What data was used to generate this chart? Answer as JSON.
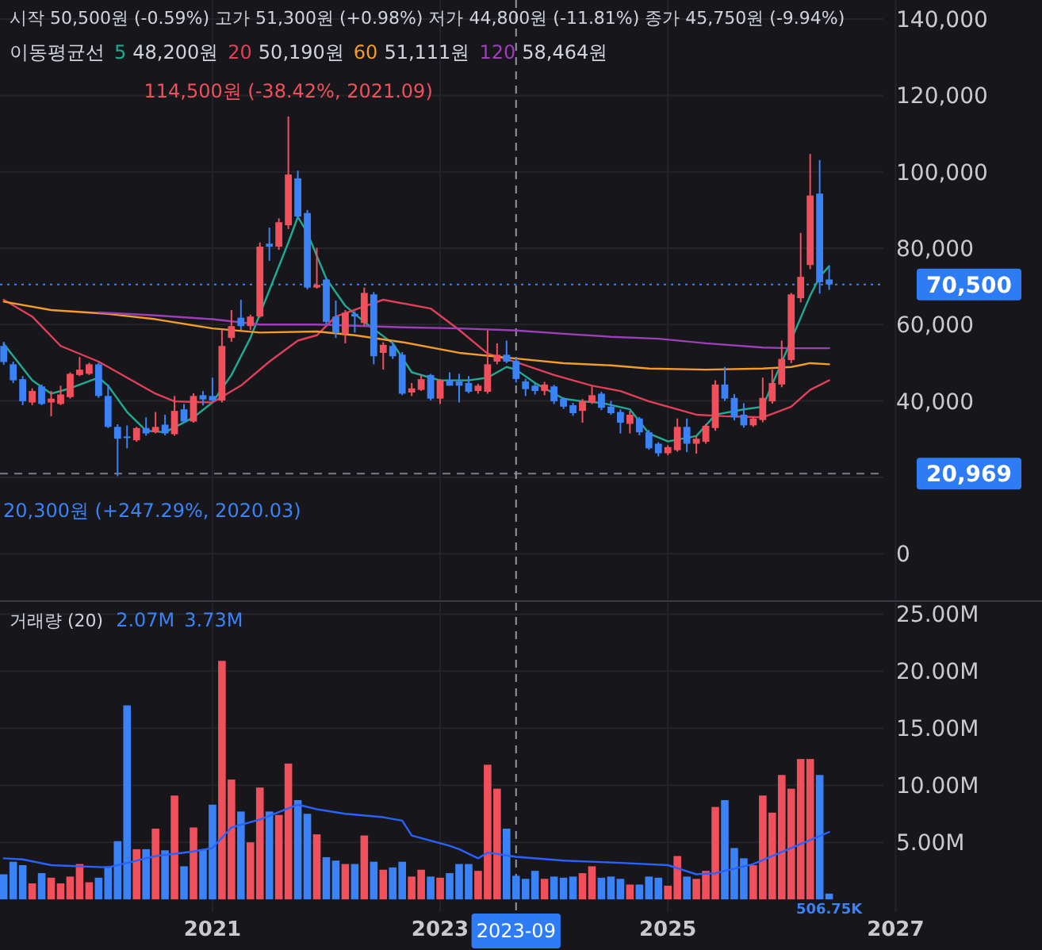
{
  "chart_data": [
    {
      "type": "candlestick",
      "title": "시작 50,500원 (-0.59%) 고가 51,300원 (+0.98%) 저가 44,800원 (-11.81%) 종가 45,750원 (-9.94%)",
      "legend_title": "이동평균선",
      "legend": "top left",
      "grid": true,
      "tick_labels": "y",
      "xlim": [
        "2019-02-18",
        "2028-04-14"
      ],
      "ylim": [
        -12000,
        145000
      ],
      "yticks": [
        0,
        {
          "value": 20000,
          "label": null
        },
        {
          "value": 40000,
          "label": "40,000"
        },
        {
          "value": 60000,
          "label": "60,000"
        },
        {
          "value": 80000,
          "label": "80,000"
        },
        {
          "value": 100000,
          "label": "100,000"
        },
        {
          "value": 120000,
          "label": "120,000"
        },
        {
          "value": 140000,
          "label": "140,000"
        }
      ],
      "xticks": [
        {
          "value": "2021-01-01",
          "label": null
        },
        {
          "value": "2023-01-01",
          "label": null
        },
        {
          "value": "2025-01-01",
          "label": null
        },
        {
          "value": "2027-01-01",
          "label": null
        }
      ],
      "x": [
        "2019-03",
        "2019-04",
        "2019-05",
        "2019-06",
        "2019-07",
        "2019-08",
        "2019-09",
        "2019-10",
        "2019-11",
        "2019-12",
        "2020-01",
        "2020-02",
        "2020-03",
        "2020-04",
        "2020-05",
        "2020-06",
        "2020-07",
        "2020-08",
        "2020-09",
        "2020-10",
        "2020-11",
        "2020-12",
        "2021-01",
        "2021-02",
        "2021-03",
        "2021-04",
        "2021-05",
        "2021-06",
        "2021-07",
        "2021-08",
        "2021-09",
        "2021-10",
        "2021-11",
        "2021-12",
        "2022-01",
        "2022-02",
        "2022-03",
        "2022-04",
        "2022-05",
        "2022-06",
        "2022-07",
        "2022-08",
        "2022-09",
        "2022-10",
        "2022-11",
        "2022-12",
        "2023-01",
        "2023-02",
        "2023-03",
        "2023-04",
        "2023-05",
        "2023-06",
        "2023-07",
        "2023-08",
        "2023-09",
        "2023-10",
        "2023-11",
        "2023-12",
        "2024-01",
        "2024-02",
        "2024-03",
        "2024-04",
        "2024-05",
        "2024-06",
        "2024-07",
        "2024-08",
        "2024-09",
        "2024-10",
        "2024-11",
        "2024-12",
        "2025-01",
        "2025-02",
        "2025-03",
        "2025-04",
        "2025-05",
        "2025-06",
        "2025-07",
        "2025-08",
        "2025-09",
        "2025-10",
        "2025-11",
        "2025-12",
        "2026-01",
        "2026-02",
        "2026-03",
        "2026-04",
        "2026-05",
        "2026-06"
      ],
      "ohlc": [
        [
          54400,
          55500,
          49500,
          50200
        ],
        [
          49600,
          50300,
          44700,
          45400
        ],
        [
          45700,
          46500,
          38900,
          39900
        ],
        [
          39600,
          43300,
          38900,
          42600
        ],
        [
          43800,
          44300,
          38900,
          39200
        ],
        [
          39600,
          42600,
          36000,
          40600
        ],
        [
          39200,
          44000,
          38900,
          41700
        ],
        [
          41000,
          47500,
          40600,
          47100
        ],
        [
          46800,
          51500,
          46500,
          48200
        ],
        [
          47100,
          50000,
          46800,
          49600
        ],
        [
          49600,
          50000,
          40800,
          41300
        ],
        [
          41300,
          44300,
          32900,
          33200
        ],
        [
          33200,
          33900,
          20300,
          30100
        ],
        [
          30700,
          33600,
          27600,
          30400
        ],
        [
          29700,
          33200,
          29300,
          32900
        ],
        [
          32900,
          35700,
          30900,
          31500
        ],
        [
          31800,
          37100,
          31500,
          33200
        ],
        [
          33800,
          36400,
          31000,
          31500
        ],
        [
          31300,
          41300,
          30900,
          37400
        ],
        [
          37800,
          39200,
          34300,
          34600
        ],
        [
          34600,
          42000,
          34300,
          41300
        ],
        [
          41500,
          42600,
          38800,
          40400
        ],
        [
          41300,
          46100,
          39800,
          40100
        ],
        [
          40100,
          58600,
          39600,
          54400
        ],
        [
          56500,
          63800,
          55500,
          59600
        ],
        [
          61800,
          66500,
          58600,
          59600
        ],
        [
          59600,
          62600,
          58600,
          62100
        ],
        [
          62100,
          81500,
          61800,
          80400
        ],
        [
          81200,
          85400,
          76700,
          80400
        ],
        [
          80400,
          87800,
          79600,
          86800
        ],
        [
          86000,
          114500,
          85000,
          99300
        ],
        [
          98300,
          100300,
          87500,
          88300
        ],
        [
          89200,
          90000,
          69200,
          69700
        ],
        [
          69700,
          80100,
          69400,
          70400
        ],
        [
          71800,
          72100,
          60000,
          60700
        ],
        [
          62100,
          66300,
          56500,
          57900
        ],
        [
          57500,
          63800,
          55100,
          63100
        ],
        [
          62800,
          63500,
          57900,
          62100
        ],
        [
          60400,
          69700,
          59700,
          68300
        ],
        [
          67900,
          68500,
          49600,
          51700
        ],
        [
          52600,
          55400,
          48200,
          54700
        ],
        [
          54400,
          55800,
          51000,
          51700
        ],
        [
          52100,
          52800,
          41500,
          41900
        ],
        [
          42200,
          44700,
          41300,
          43300
        ],
        [
          42900,
          46800,
          42600,
          45700
        ],
        [
          46800,
          47100,
          40100,
          40600
        ],
        [
          40600,
          45700,
          39200,
          45400
        ],
        [
          45400,
          47500,
          44000,
          44000
        ],
        [
          45100,
          47100,
          39600,
          44000
        ],
        [
          44700,
          46500,
          42000,
          42400
        ],
        [
          42600,
          44500,
          41900,
          44000
        ],
        [
          42400,
          58500,
          41900,
          49600
        ],
        [
          50300,
          55100,
          49600,
          52100
        ],
        [
          52100,
          55800,
          49900,
          50300
        ],
        [
          50500,
          51300,
          44800,
          45750
        ],
        [
          45100,
          45800,
          41300,
          43100
        ],
        [
          44000,
          44500,
          41700,
          42600
        ],
        [
          42600,
          45000,
          41500,
          44300
        ],
        [
          43800,
          44200,
          39200,
          39900
        ],
        [
          40600,
          41000,
          37900,
          38500
        ],
        [
          38900,
          39500,
          36100,
          36800
        ],
        [
          37400,
          40500,
          34300,
          39900
        ],
        [
          39600,
          43800,
          39200,
          41500
        ],
        [
          41900,
          42400,
          37600,
          38200
        ],
        [
          38500,
          40000,
          36400,
          36800
        ],
        [
          37100,
          37800,
          31500,
          34300
        ],
        [
          34000,
          37400,
          31500,
          36400
        ],
        [
          35400,
          35800,
          31000,
          31800
        ],
        [
          31800,
          32400,
          27200,
          27600
        ],
        [
          28800,
          29200,
          25500,
          26300
        ],
        [
          26300,
          28400,
          25800,
          27900
        ],
        [
          27100,
          35400,
          26700,
          33200
        ],
        [
          33200,
          35400,
          26600,
          28800
        ],
        [
          28800,
          30800,
          26200,
          30100
        ],
        [
          29300,
          34000,
          28800,
          33500
        ],
        [
          32900,
          45400,
          32200,
          44300
        ],
        [
          44300,
          48900,
          40000,
          40600
        ],
        [
          40800,
          41800,
          34900,
          35700
        ],
        [
          36400,
          39400,
          33000,
          33600
        ],
        [
          33600,
          35800,
          33200,
          35400
        ],
        [
          35000,
          46100,
          34400,
          40800
        ],
        [
          39900,
          48200,
          39300,
          44700
        ],
        [
          44300,
          55800,
          43600,
          51000
        ],
        [
          50700,
          68300,
          49900,
          67900
        ],
        [
          66900,
          84000,
          65800,
          72500
        ],
        [
          75600,
          104700,
          74500,
          93800
        ],
        [
          94300,
          103100,
          68100,
          71100
        ],
        [
          71800,
          75300,
          69100,
          70500
        ]
      ],
      "colors": [
        "#3b82f6",
        "#3b82f6",
        "#3b82f6",
        "#f0505c",
        "#3b82f6",
        "#f0505c",
        "#f0505c",
        "#f0505c",
        "#f0505c",
        "#f0505c",
        "#3b82f6",
        "#3b82f6",
        "#3b82f6",
        "#3b82f6",
        "#f0505c",
        "#3b82f6",
        "#f0505c",
        "#3b82f6",
        "#f0505c",
        "#3b82f6",
        "#f0505c",
        "#3b82f6",
        "#3b82f6",
        "#f0505c",
        "#f0505c",
        "#3b82f6",
        "#f0505c",
        "#f0505c",
        "#3b82f6",
        "#f0505c",
        "#f0505c",
        "#3b82f6",
        "#3b82f6",
        "#f0505c",
        "#3b82f6",
        "#3b82f6",
        "#f0505c",
        "#3b82f6",
        "#f0505c",
        "#3b82f6",
        "#f0505c",
        "#3b82f6",
        "#3b82f6",
        "#f0505c",
        "#f0505c",
        "#3b82f6",
        "#f0505c",
        "#3b82f6",
        "#3b82f6",
        "#3b82f6",
        "#f0505c",
        "#f0505c",
        "#f0505c",
        "#3b82f6",
        "#3b82f6",
        "#3b82f6",
        "#3b82f6",
        "#f0505c",
        "#3b82f6",
        "#3b82f6",
        "#3b82f6",
        "#f0505c",
        "#f0505c",
        "#3b82f6",
        "#3b82f6",
        "#3b82f6",
        "#f0505c",
        "#3b82f6",
        "#3b82f6",
        "#3b82f6",
        "#f0505c",
        "#f0505c",
        "#3b82f6",
        "#f0505c",
        "#f0505c",
        "#f0505c",
        "#3b82f6",
        "#3b82f6",
        "#3b82f6",
        "#f0505c",
        "#f0505c",
        "#f0505c",
        "#f0505c",
        "#f0505c",
        "#f0505c",
        "#f0505c",
        "#3b82f6",
        "#3b82f6"
      ],
      "series": [
        {
          "type": "line",
          "name": "5",
          "color": "#22ab94",
          "x": [
            "2019-03",
            "2019-06",
            "2019-08",
            "2019-10",
            "2020-01",
            "2020-02",
            "2020-04",
            "2020-06",
            "2020-08",
            "2020-11",
            "2021-01",
            "2021-03",
            "2021-05",
            "2021-07",
            "2021-09",
            "2021-10",
            "2021-11",
            "2022-01",
            "2022-03",
            "2022-05",
            "2022-08",
            "2022-10",
            "2023-01",
            "2023-04",
            "2023-06",
            "2023-08",
            "2023-09",
            "2023-11",
            "2024-02",
            "2024-04",
            "2024-06",
            "2024-09",
            "2024-11",
            "2025-01",
            "2025-04",
            "2025-06",
            "2025-09",
            "2025-11",
            "2026-04",
            "2026-05",
            "2026-06"
          ],
          "values": [
            54900,
            45400,
            41900,
            43300,
            46100,
            44000,
            37100,
            32200,
            31800,
            35700,
            39600,
            46800,
            56500,
            69000,
            81500,
            88200,
            84000,
            72000,
            64900,
            60700,
            55100,
            47500,
            45400,
            45400,
            46100,
            48900,
            48200,
            44700,
            40600,
            39900,
            39500,
            37800,
            31500,
            29400,
            30800,
            36400,
            37800,
            38500,
            67600,
            72500,
            75300
          ]
        },
        {
          "type": "line",
          "name": "20",
          "color": "#e0405a",
          "x": [
            "2019-03",
            "2019-06",
            "2019-09",
            "2020-01",
            "2020-04",
            "2020-07",
            "2020-09",
            "2021-01",
            "2021-04",
            "2021-07",
            "2021-10",
            "2021-12",
            "2022-02",
            "2022-07",
            "2022-12",
            "2023-03",
            "2023-06",
            "2023-09",
            "2024-01",
            "2024-05",
            "2024-08",
            "2024-11",
            "2025-04",
            "2025-07",
            "2025-11",
            "2026-02",
            "2026-04",
            "2026-06"
          ],
          "values": [
            66500,
            62100,
            54400,
            50300,
            46100,
            41900,
            39900,
            39600,
            44000,
            50300,
            55800,
            57200,
            62100,
            66500,
            64200,
            58600,
            52400,
            50190,
            46800,
            44000,
            42600,
            39900,
            36400,
            36000,
            35700,
            38500,
            42900,
            45400
          ]
        },
        {
          "type": "line",
          "name": "60",
          "color": "#f39c2a",
          "x": [
            "2019-03",
            "2019-08",
            "2020-02",
            "2020-07",
            "2021-01",
            "2021-06",
            "2021-12",
            "2022-04",
            "2022-09",
            "2023-03",
            "2023-09",
            "2024-02",
            "2024-07",
            "2024-11",
            "2025-05",
            "2025-11",
            "2026-02",
            "2026-04",
            "2026-06"
          ],
          "values": [
            66000,
            63800,
            62800,
            61400,
            59000,
            57900,
            58200,
            57200,
            55400,
            52600,
            51111,
            49900,
            49300,
            48500,
            48200,
            48500,
            48900,
            49900,
            49600
          ]
        },
        {
          "type": "line",
          "name": "120",
          "color": "#9c3fb8",
          "x": [
            "2020-01",
            "2020-07",
            "2021-01",
            "2021-06",
            "2021-12",
            "2022-09",
            "2023-03",
            "2023-09",
            "2024-02",
            "2024-07",
            "2024-12",
            "2025-05",
            "2025-11",
            "2026-02",
            "2026-06"
          ],
          "values": [
            63200,
            62400,
            61400,
            60000,
            60000,
            59300,
            59000,
            58464,
            57600,
            56800,
            56300,
            55100,
            54000,
            53800,
            53800
          ]
        }
      ],
      "annotations": [
        "48,200원",
        "50,190원",
        "51,111원",
        "58,464원",
        {
          "text": "114,500원 (-38.42%, 2021.09)",
          "x": "2021-09",
          "y": 114500
        },
        {
          "text": "20,300원 (+247.29%, 2020.03)",
          "x": "2020-03",
          "y": 20300
        }
      ],
      "ref_lines": [
        {
          "axis": "y",
          "value": 70500,
          "label": "70,500",
          "color": "#3b82f6",
          "line_style": "dotted"
        },
        {
          "axis": "y",
          "value": 20969,
          "label": "20,969",
          "color": "#787b86",
          "line_style": "dashed"
        },
        {
          "axis": "x",
          "value": "2023-09",
          "color": "#9598a1",
          "line_style": "dashed"
        }
      ]
    },
    {
      "type": "bar",
      "title": "거래량 (20)",
      "grid": true,
      "xlim": [
        "2019-02-18",
        "2028-04-14"
      ],
      "ylim": [
        -1100000,
        26000000
      ],
      "yticks": [
        {
          "value": 5000000,
          "label": "5.00M"
        },
        {
          "value": 10000000,
          "label": "10.00M"
        },
        {
          "value": 15000000,
          "label": "15.00M"
        },
        {
          "value": 20000000,
          "label": "20.00M"
        },
        {
          "value": 25000000,
          "label": "25.00M"
        }
      ],
      "xticks": [
        {
          "value": "2021-01-01",
          "label": "2021"
        },
        {
          "value": "2023-01-01",
          "label": "2023"
        },
        {
          "value": "2025-01-01",
          "label": "2025"
        },
        {
          "value": "2027-01-01",
          "label": "2027"
        }
      ],
      "x": [
        "2019-03",
        "2019-04",
        "2019-05",
        "2019-06",
        "2019-07",
        "2019-08",
        "2019-09",
        "2019-10",
        "2019-11",
        "2019-12",
        "2020-01",
        "2020-02",
        "2020-03",
        "2020-04",
        "2020-05",
        "2020-06",
        "2020-07",
        "2020-08",
        "2020-09",
        "2020-10",
        "2020-11",
        "2020-12",
        "2021-01",
        "2021-02",
        "2021-03",
        "2021-04",
        "2021-05",
        "2021-06",
        "2021-07",
        "2021-08",
        "2021-09",
        "2021-10",
        "2021-11",
        "2021-12",
        "2022-01",
        "2022-02",
        "2022-03",
        "2022-04",
        "2022-05",
        "2022-06",
        "2022-07",
        "2022-08",
        "2022-09",
        "2022-10",
        "2022-11",
        "2022-12",
        "2023-01",
        "2023-02",
        "2023-03",
        "2023-04",
        "2023-05",
        "2023-06",
        "2023-07",
        "2023-08",
        "2023-09",
        "2023-10",
        "2023-11",
        "2023-12",
        "2024-01",
        "2024-02",
        "2024-03",
        "2024-04",
        "2024-05",
        "2024-06",
        "2024-07",
        "2024-08",
        "2024-09",
        "2024-10",
        "2024-11",
        "2024-12",
        "2025-01",
        "2025-02",
        "2025-03",
        "2025-04",
        "2025-05",
        "2025-06",
        "2025-07",
        "2025-08",
        "2025-09",
        "2025-10",
        "2025-11",
        "2025-12",
        "2026-01",
        "2026-02",
        "2026-03",
        "2026-04",
        "2026-05",
        "2026-06"
      ],
      "values": [
        2200000,
        3300000,
        3000000,
        1400000,
        2300000,
        1900000,
        1400000,
        2000000,
        3100000,
        1500000,
        1900000,
        2900000,
        5100000,
        17000000,
        4400000,
        4400000,
        6200000,
        4300000,
        9100000,
        2900000,
        6300000,
        4400000,
        8300000,
        20900000,
        10500000,
        7700000,
        5000000,
        9800000,
        7700000,
        7400000,
        11900000,
        8700000,
        7500000,
        5700000,
        3700000,
        3400000,
        3100000,
        3100000,
        5600000,
        3300000,
        2600000,
        2800000,
        3300000,
        2000000,
        2600000,
        2000000,
        1900000,
        2300000,
        3100000,
        3100000,
        2500000,
        11800000,
        9700000,
        6200000,
        2070000,
        1800000,
        2500000,
        1800000,
        2000000,
        1900000,
        2000000,
        2300000,
        2900000,
        1900000,
        2000000,
        1800000,
        1300000,
        1300000,
        2000000,
        1900000,
        1200000,
        3800000,
        2000000,
        1800000,
        2500000,
        8100000,
        8700000,
        4500000,
        3600000,
        3000000,
        9100000,
        7600000,
        10900000,
        9700000,
        12300000,
        12300000,
        10900000,
        506750
      ],
      "value_labels": [
        null,
        null,
        null,
        null,
        null,
        null,
        null,
        null,
        null,
        null,
        null,
        null,
        null,
        null,
        null,
        null,
        null,
        null,
        null,
        null,
        null,
        null,
        null,
        null,
        null,
        null,
        null,
        null,
        null,
        null,
        null,
        null,
        null,
        null,
        null,
        null,
        null,
        null,
        null,
        null,
        null,
        null,
        null,
        null,
        null,
        null,
        null,
        null,
        null,
        null,
        null,
        null,
        null,
        null,
        null,
        null,
        null,
        null,
        null,
        null,
        null,
        null,
        null,
        null,
        null,
        null,
        null,
        null,
        null,
        null,
        null,
        null,
        null,
        null,
        null,
        null,
        null,
        null,
        null,
        null,
        null,
        null,
        null,
        null,
        null,
        null,
        null,
        "506.75K"
      ],
      "colors": [
        "#3b82f6",
        "#3b82f6",
        "#3b82f6",
        "#f0505c",
        "#3b82f6",
        "#f0505c",
        "#f0505c",
        "#f0505c",
        "#f0505c",
        "#f0505c",
        "#3b82f6",
        "#3b82f6",
        "#3b82f6",
        "#3b82f6",
        "#f0505c",
        "#3b82f6",
        "#f0505c",
        "#3b82f6",
        "#f0505c",
        "#3b82f6",
        "#f0505c",
        "#3b82f6",
        "#3b82f6",
        "#f0505c",
        "#f0505c",
        "#3b82f6",
        "#f0505c",
        "#f0505c",
        "#3b82f6",
        "#f0505c",
        "#f0505c",
        "#3b82f6",
        "#3b82f6",
        "#f0505c",
        "#3b82f6",
        "#3b82f6",
        "#f0505c",
        "#3b82f6",
        "#f0505c",
        "#3b82f6",
        "#f0505c",
        "#3b82f6",
        "#3b82f6",
        "#f0505c",
        "#f0505c",
        "#3b82f6",
        "#f0505c",
        "#3b82f6",
        "#3b82f6",
        "#3b82f6",
        "#f0505c",
        "#f0505c",
        "#f0505c",
        "#3b82f6",
        "#3b82f6",
        "#3b82f6",
        "#3b82f6",
        "#f0505c",
        "#3b82f6",
        "#3b82f6",
        "#3b82f6",
        "#f0505c",
        "#f0505c",
        "#3b82f6",
        "#3b82f6",
        "#3b82f6",
        "#f0505c",
        "#3b82f6",
        "#3b82f6",
        "#3b82f6",
        "#f0505c",
        "#f0505c",
        "#3b82f6",
        "#f0505c",
        "#f0505c",
        "#f0505c",
        "#3b82f6",
        "#3b82f6",
        "#3b82f6",
        "#f0505c",
        "#f0505c",
        "#f0505c",
        "#f0505c",
        "#f0505c",
        "#f0505c",
        "#f0505c",
        "#3b82f6",
        "#3b82f6"
      ],
      "series": [
        {
          "type": "line",
          "color": "#2962ff",
          "x": [
            "2019-03",
            "2019-05",
            "2019-08",
            "2020-02",
            "2020-04",
            "2020-07",
            "2020-11",
            "2021-01",
            "2021-03",
            "2021-06",
            "2021-10",
            "2021-12",
            "2022-03",
            "2022-07",
            "2022-09",
            "2022-10",
            "2023-02",
            "2023-03",
            "2023-05",
            "2023-06",
            "2023-09",
            "2024-02",
            "2024-08",
            "2025-01",
            "2025-04",
            "2025-06",
            "2025-10",
            "2026-02",
            "2026-06"
          ],
          "values": [
            3600000,
            3500000,
            3000000,
            2800000,
            3200000,
            3800000,
            4200000,
            4500000,
            6300000,
            7000000,
            8300000,
            7900000,
            7500000,
            7200000,
            6900000,
            5600000,
            4700000,
            4400000,
            3600000,
            4100000,
            3730000,
            3400000,
            3200000,
            3000000,
            2200000,
            2300000,
            3100000,
            4500000,
            5900000
          ]
        }
      ],
      "annotations": [
        "2.07M",
        "3.73M"
      ],
      "ref_lines": [
        {
          "axis": "x",
          "value": "2023-09",
          "label": "2023-09",
          "color": "#9598a1",
          "line_style": "dashed"
        }
      ]
    }
  ]
}
